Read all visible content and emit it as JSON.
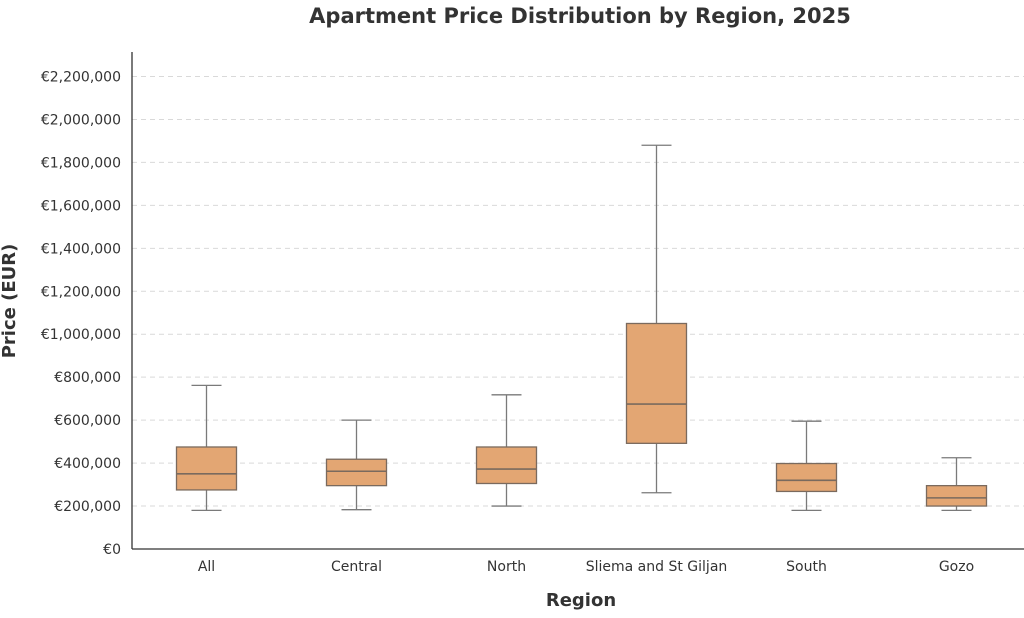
{
  "chart_data": {
    "type": "box",
    "title": "Apartment Price Distribution by Region, 2025",
    "xlabel": "Region",
    "ylabel": "Price (EUR)",
    "ylim": [
      0,
      2200000
    ],
    "yticks": [
      0,
      200000,
      400000,
      600000,
      800000,
      1000000,
      1200000,
      1400000,
      1600000,
      1800000,
      2000000,
      2200000
    ],
    "ytick_labels": [
      "€0",
      "€200,000",
      "€400,000",
      "€600,000",
      "€800,000",
      "€1,000,000",
      "€1,200,000",
      "€1,400,000",
      "€1,600,000",
      "€1,800,000",
      "€2,000,000",
      "€2,200,000"
    ],
    "grid": true,
    "categories": [
      "All",
      "Central",
      "North",
      "Sliema and St Giljan",
      "South",
      "Gozo"
    ],
    "series": [
      {
        "name": "All",
        "whisker_low": 180000,
        "q1": 275000,
        "median": 350000,
        "q3": 475000,
        "whisker_high": 762000
      },
      {
        "name": "Central",
        "whisker_low": 183000,
        "q1": 295000,
        "median": 362000,
        "q3": 418000,
        "whisker_high": 600000
      },
      {
        "name": "North",
        "whisker_low": 200000,
        "q1": 305000,
        "median": 372000,
        "q3": 475000,
        "whisker_high": 718000
      },
      {
        "name": "Sliema and St Giljan",
        "whisker_low": 262000,
        "q1": 492000,
        "median": 675000,
        "q3": 1050000,
        "whisker_high": 1880000
      },
      {
        "name": "South",
        "whisker_low": 180000,
        "q1": 268000,
        "median": 320000,
        "q3": 398000,
        "whisker_high": 595000
      },
      {
        "name": "Gozo",
        "whisker_low": 180000,
        "q1": 200000,
        "median": 238000,
        "q3": 295000,
        "whisker_high": 425000
      }
    ],
    "colors": {
      "box_fill": "#e3a673",
      "box_edge": "#7a6a5e",
      "whisker": "#7a7a7a",
      "median": "#7a6a5e",
      "grid": "#d9d9d9",
      "axis": "#333333"
    }
  }
}
